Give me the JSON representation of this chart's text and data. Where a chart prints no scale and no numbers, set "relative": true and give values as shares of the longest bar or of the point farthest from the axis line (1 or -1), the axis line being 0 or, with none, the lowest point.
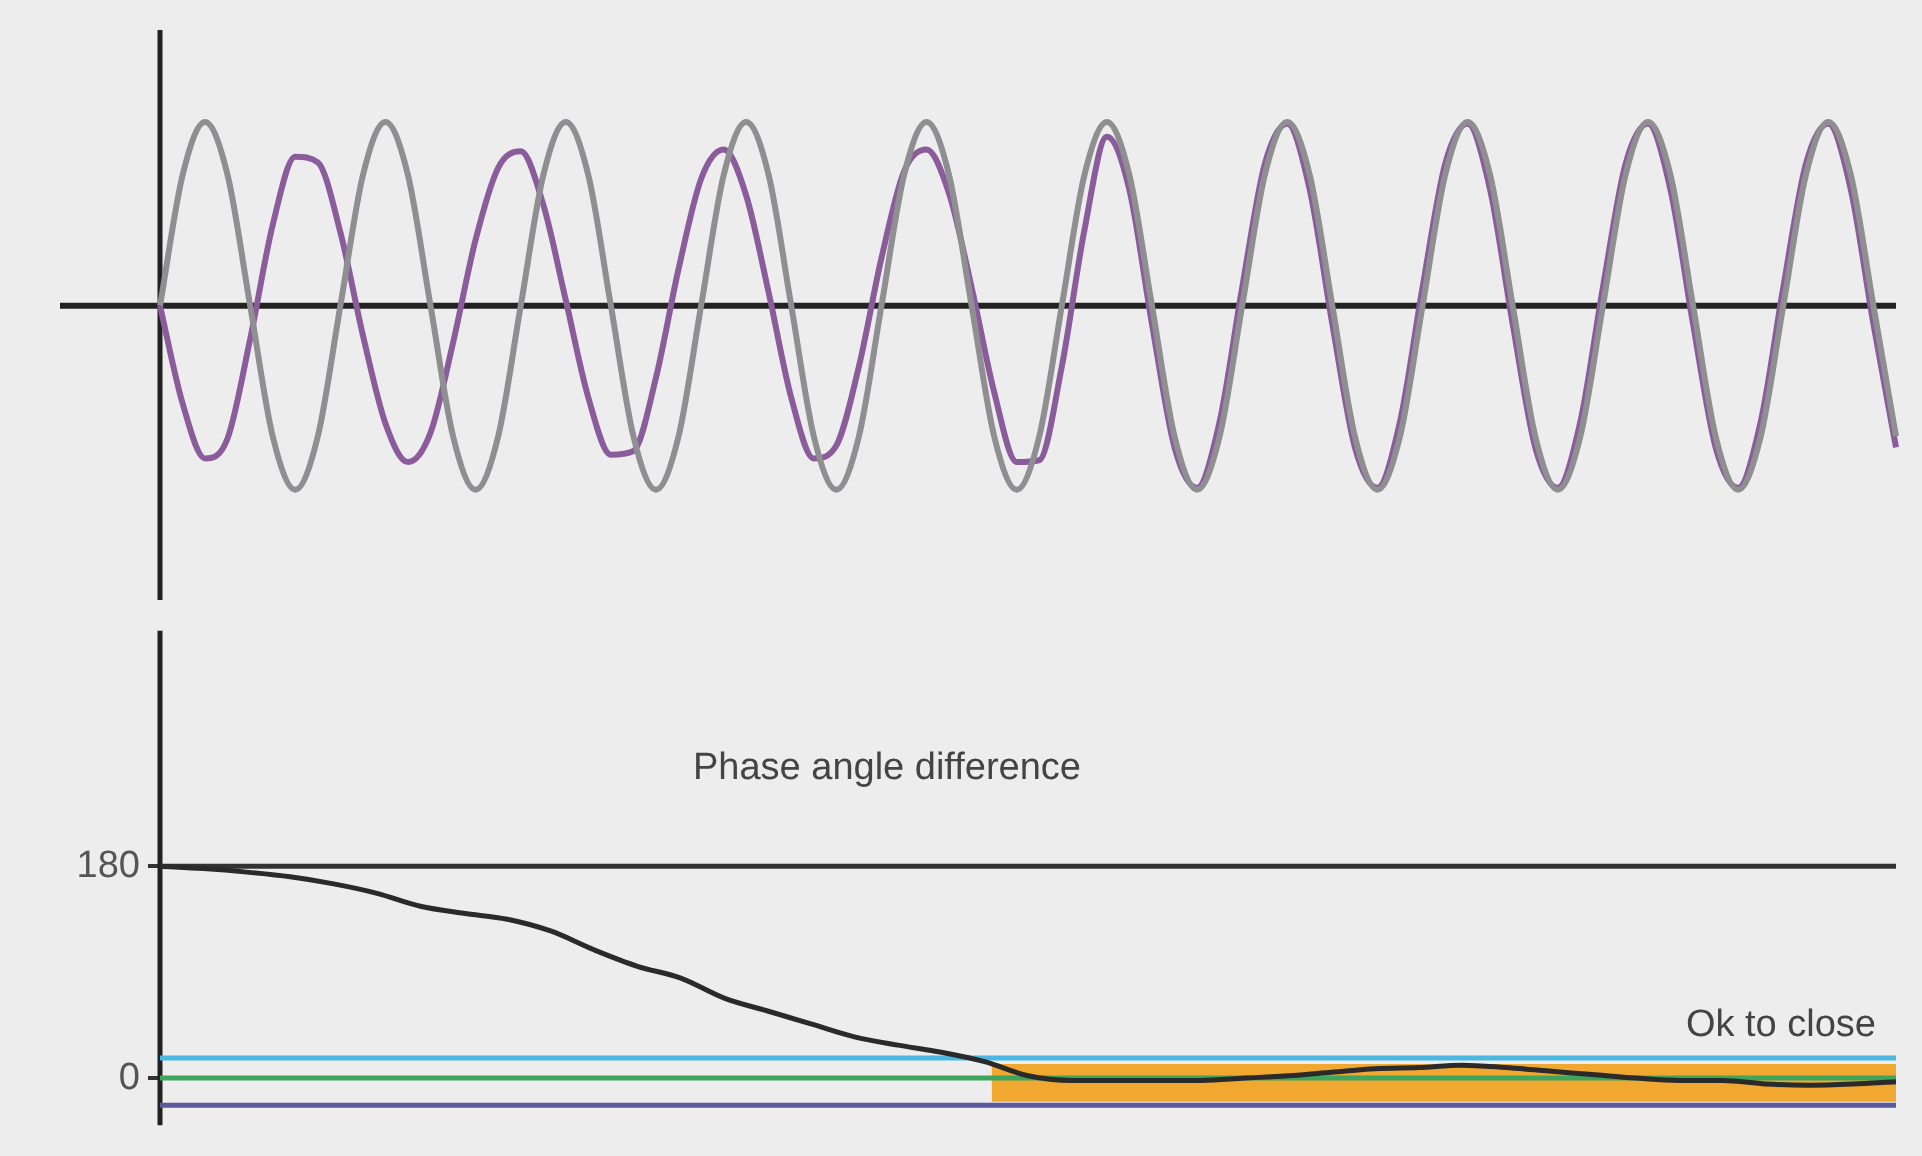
{
  "chart_data": [
    {
      "type": "line",
      "relative": true,
      "categories": [
        null,
        null,
        null,
        null,
        null,
        null,
        null,
        null,
        null,
        null,
        null,
        null,
        null,
        null,
        null,
        null,
        null,
        null,
        null,
        null,
        null,
        null,
        null,
        null,
        null,
        null,
        null,
        null,
        null,
        null,
        null,
        null,
        null,
        null,
        null,
        null,
        null,
        null,
        null,
        null,
        null,
        null,
        null,
        null,
        null,
        null,
        null,
        null,
        null,
        null,
        null,
        null,
        null,
        null,
        null,
        null,
        null,
        null,
        null,
        null,
        null,
        null,
        null,
        null,
        null,
        null,
        null,
        null,
        null,
        null,
        null,
        null,
        null,
        null,
        null,
        null,
        null,
        null
      ],
      "series": [
        {
          "color": "#8f8f92",
          "values": [
            0,
            0.71,
            1,
            0.71,
            0,
            -0.71,
            -1,
            -0.71,
            0,
            0.71,
            1,
            0.71,
            0,
            -0.71,
            -1,
            -0.71,
            0,
            0.71,
            1,
            0.71,
            0,
            -0.71,
            -1,
            -0.71,
            0,
            0.71,
            1,
            0.71,
            0,
            -0.71,
            -1,
            -0.71,
            0,
            0.71,
            1,
            0.71,
            0,
            -0.71,
            -1,
            -0.71,
            0,
            0.71,
            1,
            0.71,
            0,
            -0.71,
            -1,
            -0.71,
            0,
            0.71,
            1,
            0.71,
            0,
            -0.71,
            -1,
            -0.71,
            0,
            0.71,
            1,
            0.71,
            0,
            -0.71,
            -1,
            -0.71,
            0,
            0.71,
            1,
            0.71,
            0,
            -0.71,
            -1,
            -0.71,
            0,
            0.71,
            1,
            0.71,
            0,
            -0.71
          ]
        },
        {
          "color": "#8b5c9c",
          "values": [
            0,
            -0.53,
            -0.83,
            -0.72,
            -0.18,
            0.44,
            0.81,
            0.78,
            0.4,
            -0.16,
            -0.64,
            -0.85,
            -0.69,
            -0.2,
            0.36,
            0.75,
            0.84,
            0.55,
            0.03,
            -0.5,
            -0.81,
            -0.79,
            -0.39,
            0.2,
            0.69,
            0.85,
            0.6,
            0.07,
            -0.5,
            -0.83,
            -0.76,
            -0.33,
            0.26,
            0.73,
            0.85,
            0.61,
            0.1,
            -0.47,
            -0.85,
            -0.84,
            -0.33,
            0.41,
            0.92,
            0.63,
            -0.1,
            -0.77,
            -0.99,
            -0.63,
            0.1,
            0.77,
            0.99,
            0.63,
            -0.1,
            -0.77,
            -0.99,
            -0.63,
            0.1,
            0.77,
            0.99,
            0.63,
            -0.1,
            -0.77,
            -0.99,
            -0.63,
            0.1,
            0.77,
            0.99,
            0.63,
            -0.1,
            -0.77,
            -0.99,
            -0.63,
            0.1,
            0.77,
            0.99,
            0.63,
            -0.1,
            -0.77
          ]
        }
      ]
    },
    {
      "type": "line",
      "categories": [
        null,
        null,
        null,
        null,
        null,
        null,
        null,
        null,
        null,
        null,
        null,
        null,
        null,
        null,
        null,
        null,
        null,
        null,
        null,
        null,
        null,
        null,
        null,
        null,
        null,
        null,
        null,
        null,
        null,
        null,
        null,
        null,
        null,
        null,
        null,
        null,
        null,
        null,
        null,
        null,
        null
      ],
      "series": [
        {
          "name": "Phase angle difference",
          "color": "#2a2a2a",
          "values": [
            180,
            178,
            175,
            171,
            165,
            157,
            146,
            140,
            135,
            125,
            109,
            95,
            85,
            68,
            57,
            46,
            35,
            28,
            22,
            14,
            2,
            -2,
            -2,
            -2,
            -2,
            0,
            2,
            5,
            8,
            9,
            11,
            9,
            6,
            3,
            0,
            -2,
            -2,
            -5,
            -6,
            -5,
            -3
          ]
        }
      ],
      "ylim": [
        -40,
        380
      ],
      "yticks": [
        0,
        180
      ],
      "tick_labels": "y",
      "ref_lines": [
        {
          "axis": "y",
          "value": 180,
          "color": "#333333"
        },
        {
          "axis": "y",
          "value": 17,
          "color": "#4cb8e2"
        },
        {
          "axis": "y",
          "value": 0,
          "color": "#3fa45c"
        },
        {
          "axis": "y",
          "value": -23,
          "color": "#5c5a9c"
        }
      ],
      "bands": [
        {
          "axis": "y",
          "from": -20,
          "to": 12,
          "label": "Ok to close",
          "color": "#f0a830"
        }
      ]
    }
  ]
}
